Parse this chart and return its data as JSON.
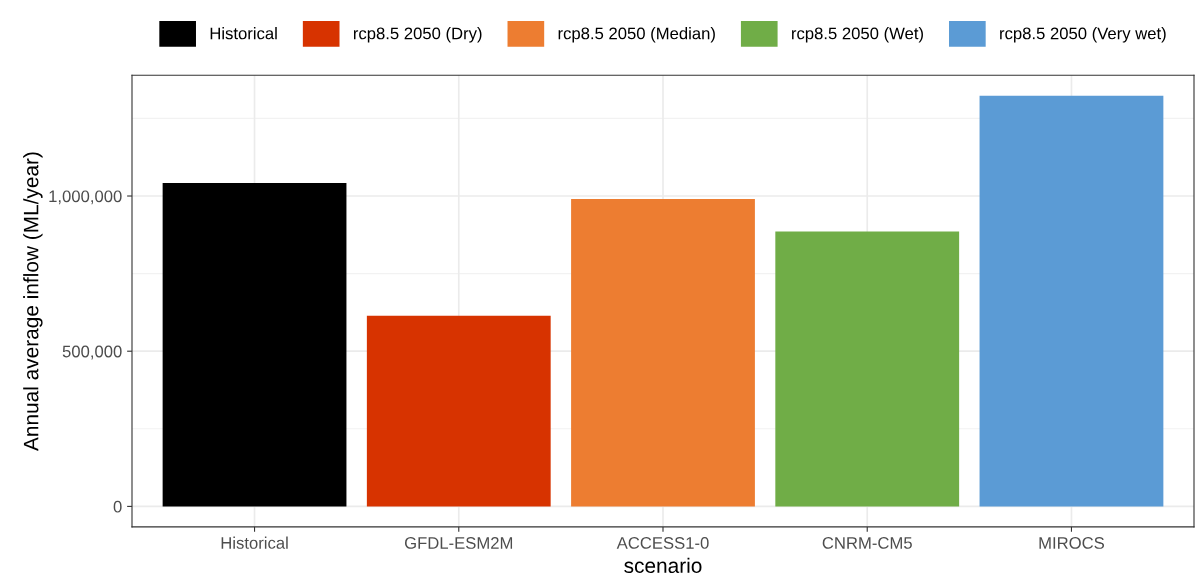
{
  "chart_data": {
    "type": "bar",
    "xlabel": "scenario",
    "ylabel": "Annual average inflow (ML/year)",
    "categories": [
      "Historical",
      "GFDL-ESM2M",
      "ACCESS1-0",
      "CNRM-CM5",
      "MIROCS"
    ],
    "series": [
      {
        "name": "Historical",
        "color": "#000000",
        "values": [
          1042000,
          null,
          null,
          null,
          null
        ]
      },
      {
        "name": "rcp8.5 2050 (Dry)",
        "color": "#d73300",
        "values": [
          null,
          614000,
          null,
          null,
          null
        ]
      },
      {
        "name": "rcp8.5 2050 (Median)",
        "color": "#ed7d31",
        "values": [
          null,
          null,
          990000,
          null,
          null
        ]
      },
      {
        "name": "rcp8.5 2050 (Wet)",
        "color": "#70ad47",
        "values": [
          null,
          null,
          null,
          886000,
          null
        ]
      },
      {
        "name": "rcp8.5 2050 (Very wet)",
        "color": "#5b9bd5",
        "values": [
          null,
          null,
          null,
          null,
          1323000
        ]
      }
    ],
    "ylim": [
      -66000,
      1389000
    ],
    "yticks": [
      {
        "value": 0,
        "label": "0"
      },
      {
        "value": 500000,
        "label": "500,000"
      },
      {
        "value": 1000000,
        "label": "1,000,000"
      }
    ],
    "grid": true,
    "legend": "top"
  }
}
